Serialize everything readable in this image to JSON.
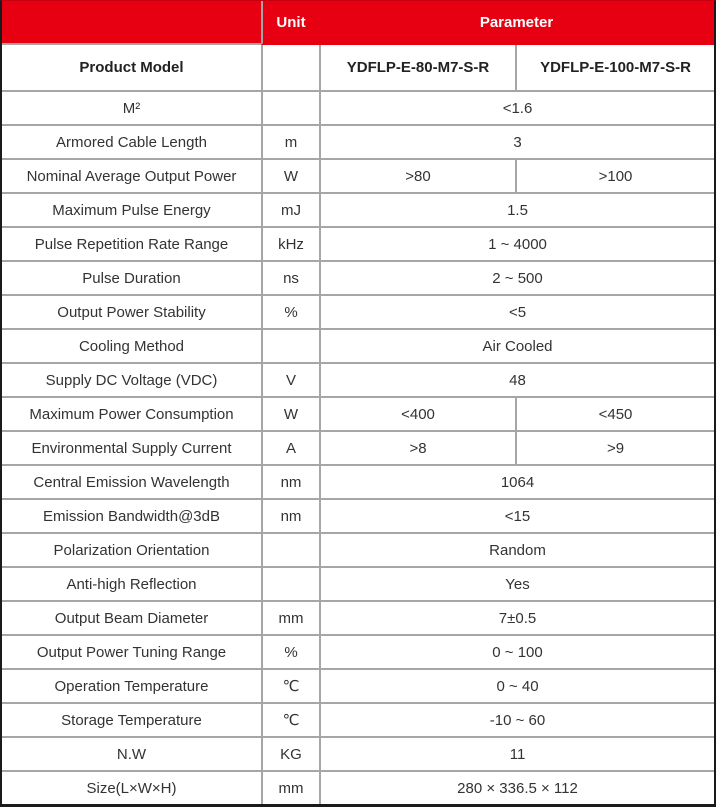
{
  "table": {
    "header": {
      "model_col": "",
      "unit": "Unit",
      "parameter": "Parameter"
    },
    "product_model": {
      "label": "Product Model",
      "unit": "",
      "values": [
        "YDFLP-E-80-M7-S-R",
        "YDFLP-E-100-M7-S-R"
      ]
    },
    "rows": [
      {
        "label": "M²",
        "unit": "",
        "value": "<1.6"
      },
      {
        "label": "Armored Cable Length",
        "unit": "m",
        "value": "3"
      },
      {
        "label": "Nominal Average Output Power",
        "unit": "W",
        "values": [
          ">80",
          ">100"
        ]
      },
      {
        "label": "Maximum Pulse Energy",
        "unit": "mJ",
        "value": "1.5"
      },
      {
        "label": "Pulse Repetition Rate Range",
        "unit": "kHz",
        "value": "1 ~ 4000"
      },
      {
        "label": "Pulse Duration",
        "unit": "ns",
        "value": "2 ~ 500"
      },
      {
        "label": "Output Power Stability",
        "unit": "%",
        "value": "<5"
      },
      {
        "label": "Cooling Method",
        "unit": "",
        "value": "Air Cooled"
      },
      {
        "label": "Supply DC Voltage (VDC)",
        "unit": "V",
        "value": "48"
      },
      {
        "label": "Maximum Power Consumption",
        "unit": "W",
        "values": [
          "<400",
          "<450"
        ]
      },
      {
        "label": "Environmental Supply Current",
        "unit": "A",
        "values": [
          ">8",
          ">9"
        ]
      },
      {
        "label": "Central Emission Wavelength",
        "unit": "nm",
        "value": "1064"
      },
      {
        "label": "Emission Bandwidth@3dB",
        "unit": "nm",
        "value": "<15"
      },
      {
        "label": "Polarization Orientation",
        "unit": "",
        "value": "Random"
      },
      {
        "label": "Anti-high Reflection",
        "unit": "",
        "value": "Yes"
      },
      {
        "label": "Output Beam Diameter",
        "unit": "mm",
        "value": "7±0.5"
      },
      {
        "label": "Output Power Tuning Range",
        "unit": "%",
        "value": "0 ~ 100"
      },
      {
        "label": "Operation Temperature",
        "unit": "℃",
        "value": "0 ~ 40"
      },
      {
        "label": "Storage Temperature",
        "unit": "℃",
        "value": "-10 ~ 60"
      },
      {
        "label": "N.W",
        "unit": "KG",
        "value": "11"
      },
      {
        "label": "Size(L×W×H)",
        "unit": "mm",
        "value": "280 × 336.5 × 112"
      }
    ]
  },
  "colors": {
    "header_bg": "#e60012",
    "grid_line": "#a6a6a6",
    "outer_border": "#1a1a1a",
    "text": "#333333",
    "header_text": "#ffffff"
  }
}
